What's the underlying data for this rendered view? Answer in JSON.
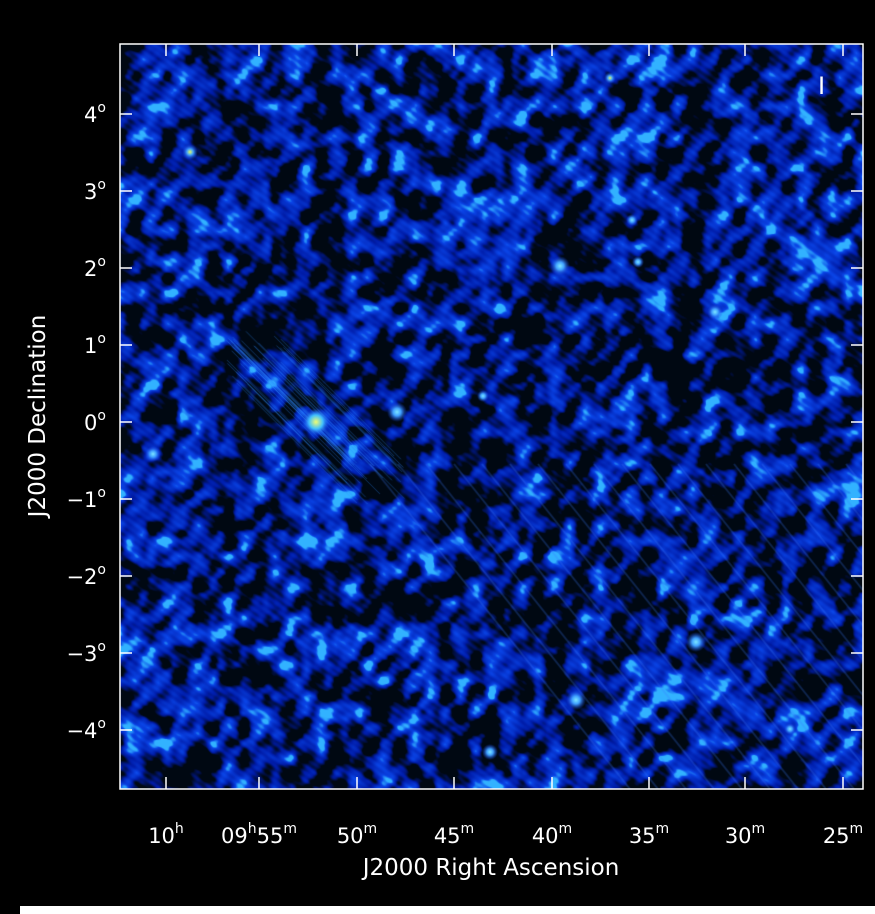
{
  "figure": {
    "stokes": "I",
    "xlabel": "J2000 Right Ascension",
    "ylabel": "J2000 Declination",
    "colors": {
      "background": "#000000",
      "frame": "#ffffff",
      "map_low": "#000010",
      "map_mid": "#0d2cd6",
      "map_high": "#4fb8ff",
      "map_peak": "#e8ff60"
    }
  },
  "x_ticks": [
    {
      "major": "10",
      "sup": "h"
    },
    {
      "major": "09",
      "sup": "h",
      "minor": "55",
      "sup2": "m"
    },
    {
      "major": "50",
      "sup": "m"
    },
    {
      "major": "45",
      "sup": "m"
    },
    {
      "major": "40",
      "sup": "m"
    },
    {
      "major": "35",
      "sup": "m"
    },
    {
      "major": "30",
      "sup": "m"
    },
    {
      "major": "25",
      "sup": "m"
    }
  ],
  "y_ticks": [
    {
      "major": "4",
      "sup": "o"
    },
    {
      "major": "3",
      "sup": "o"
    },
    {
      "major": "2",
      "sup": "o"
    },
    {
      "major": "1",
      "sup": "o"
    },
    {
      "major": "0",
      "sup": "o"
    },
    {
      "major": "−1",
      "sup": "o"
    },
    {
      "major": "−2",
      "sup": "o"
    },
    {
      "major": "−3",
      "sup": "o"
    },
    {
      "major": "−4",
      "sup": "o"
    }
  ]
}
